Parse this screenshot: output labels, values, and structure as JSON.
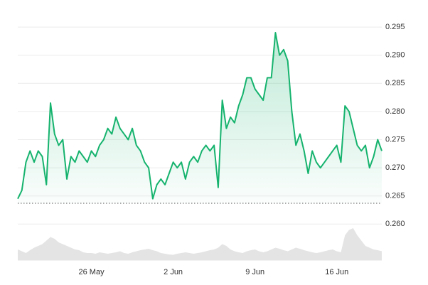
{
  "chart_data": {
    "type": "line",
    "categories": [
      null,
      null,
      null,
      null,
      null,
      null,
      null,
      null,
      null,
      null,
      null,
      null,
      null,
      null,
      null,
      null,
      null,
      null,
      "26 May",
      null,
      null,
      null,
      null,
      null,
      null,
      null,
      null,
      null,
      null,
      null,
      null,
      null,
      null,
      null,
      null,
      null,
      null,
      null,
      "2 Jun",
      null,
      null,
      null,
      null,
      null,
      null,
      null,
      null,
      null,
      null,
      null,
      null,
      null,
      null,
      null,
      null,
      null,
      null,
      null,
      "9 Jun",
      null,
      null,
      null,
      null,
      null,
      null,
      null,
      null,
      null,
      null,
      null,
      null,
      null,
      null,
      null,
      null,
      null,
      null,
      null,
      "16 Jun",
      null,
      null,
      null,
      null,
      null,
      null,
      null,
      null,
      null,
      null,
      null
    ],
    "values": [
      0.2645,
      0.266,
      0.271,
      0.273,
      0.271,
      0.273,
      0.272,
      0.267,
      0.2815,
      0.276,
      0.274,
      0.275,
      0.268,
      0.272,
      0.271,
      0.273,
      0.272,
      0.271,
      0.273,
      0.272,
      0.274,
      0.275,
      0.277,
      0.276,
      0.279,
      0.277,
      0.276,
      0.275,
      0.277,
      0.274,
      0.273,
      0.271,
      0.27,
      0.2645,
      0.267,
      0.268,
      0.267,
      0.269,
      0.271,
      0.27,
      0.271,
      0.268,
      0.271,
      0.272,
      0.271,
      0.273,
      0.274,
      0.273,
      0.274,
      0.2665,
      0.282,
      0.277,
      0.279,
      0.278,
      0.281,
      0.283,
      0.286,
      0.286,
      0.284,
      0.283,
      0.282,
      0.286,
      0.286,
      0.294,
      0.29,
      0.291,
      0.289,
      0.28,
      0.274,
      0.276,
      0.273,
      0.269,
      0.273,
      0.271,
      0.27,
      0.271,
      0.272,
      0.273,
      0.274,
      0.271,
      0.281,
      0.28,
      0.277,
      0.274,
      0.273,
      0.274,
      0.27,
      0.272,
      0.275,
      0.273
    ],
    "color": "#16b36e",
    "baseline": 0.2637,
    "volume": {
      "axis": "y2",
      "color": "#e4e4e4",
      "values": [
        30,
        25,
        20,
        28,
        35,
        40,
        45,
        55,
        65,
        60,
        50,
        45,
        40,
        35,
        30,
        28,
        22,
        20,
        20,
        18,
        22,
        20,
        18,
        20,
        22,
        25,
        20,
        18,
        22,
        25,
        28,
        30,
        32,
        28,
        25,
        20,
        18,
        16,
        15,
        18,
        20,
        22,
        20,
        18,
        20,
        22,
        25,
        28,
        30,
        35,
        45,
        40,
        30,
        25,
        22,
        20,
        25,
        28,
        30,
        25,
        22,
        25,
        30,
        35,
        32,
        28,
        25,
        30,
        35,
        32,
        28,
        25,
        22,
        20,
        22,
        25,
        28,
        30,
        25,
        22,
        70,
        85,
        90,
        70,
        55,
        40,
        35,
        30,
        28,
        25
      ]
    },
    "ylim": [
      0.2536,
      0.2988
    ],
    "yticks": [
      {
        "value": 0.26,
        "label": "0.260"
      },
      0.265,
      {
        "value": 0.27,
        "label": "0.270"
      },
      0.275,
      {
        "value": 0.28,
        "label": "0.280"
      },
      0.285,
      {
        "value": 0.29,
        "label": "0.290"
      },
      0.295
    ],
    "y2lim": [
      0,
      100
    ],
    "grid": true
  }
}
